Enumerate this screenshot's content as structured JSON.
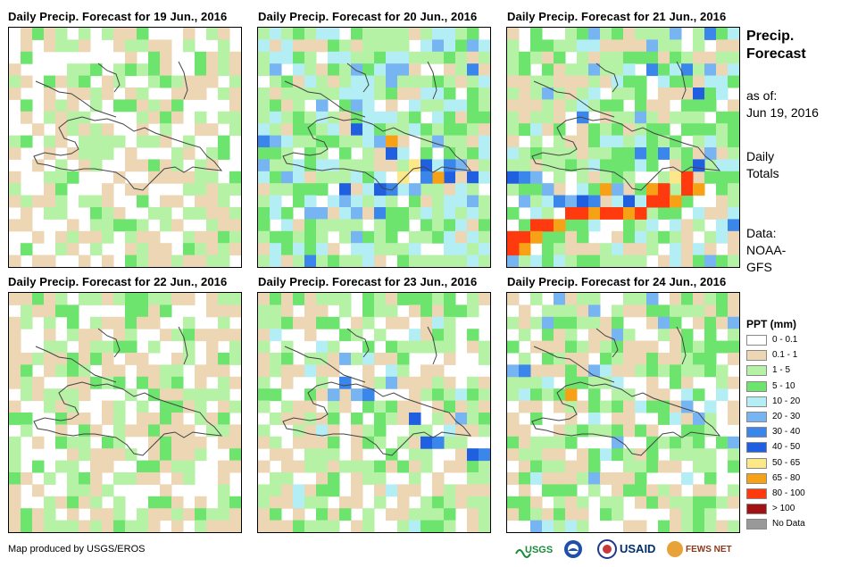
{
  "panels": [
    {
      "title": "Daily Precip. Forecast for 19 Jun., 2016"
    },
    {
      "title": "Daily Precip. Forecast for 20 Jun., 2016"
    },
    {
      "title": "Daily Precip. Forecast for 21 Jun., 2016"
    },
    {
      "title": "Daily Precip. Forecast for 22 Jun., 2016"
    },
    {
      "title": "Daily Precip. Forecast for 23 Jun., 2016"
    },
    {
      "title": "Daily Precip. Forecast for 24 Jun., 2016"
    }
  ],
  "side": {
    "title_line1": "Precip.",
    "title_line2": "Forecast",
    "asof_label": "as of:",
    "asof_date": "Jun 19, 2016",
    "totals_line1": "Daily",
    "totals_line2": "Totals",
    "data_line1": "Data:",
    "data_line2": "NOAA-",
    "data_line3": "GFS"
  },
  "legend": {
    "title": "PPT (mm)",
    "items": [
      {
        "label": "0 - 0.1",
        "color": "#ffffff"
      },
      {
        "label": "0.1 - 1",
        "color": "#ecd6b4"
      },
      {
        "label": "1 - 5",
        "color": "#b6f2a6"
      },
      {
        "label": "5 - 10",
        "color": "#6de46d"
      },
      {
        "label": "10 - 20",
        "color": "#b3eef5"
      },
      {
        "label": "20 - 30",
        "color": "#77b5f2"
      },
      {
        "label": "30 - 40",
        "color": "#3b86ea"
      },
      {
        "label": "40 - 50",
        "color": "#1f5fe0"
      },
      {
        "label": "50 - 65",
        "color": "#fce789"
      },
      {
        "label": "65 - 80",
        "color": "#f7a216"
      },
      {
        "label": "80 - 100",
        "color": "#ff3a0e"
      },
      {
        "label": "> 100",
        "color": "#a31212"
      },
      {
        "label": "No Data",
        "color": "#999999"
      }
    ]
  },
  "footer": {
    "credit": "Map produced by USGS/EROS"
  },
  "logos": [
    {
      "name": "USGS",
      "text": "USGS"
    },
    {
      "name": "NOAA",
      "text": "NOAA"
    },
    {
      "name": "USAID",
      "text": "USAID"
    },
    {
      "name": "FEWS NET",
      "text": "FEWS NET"
    }
  ]
}
